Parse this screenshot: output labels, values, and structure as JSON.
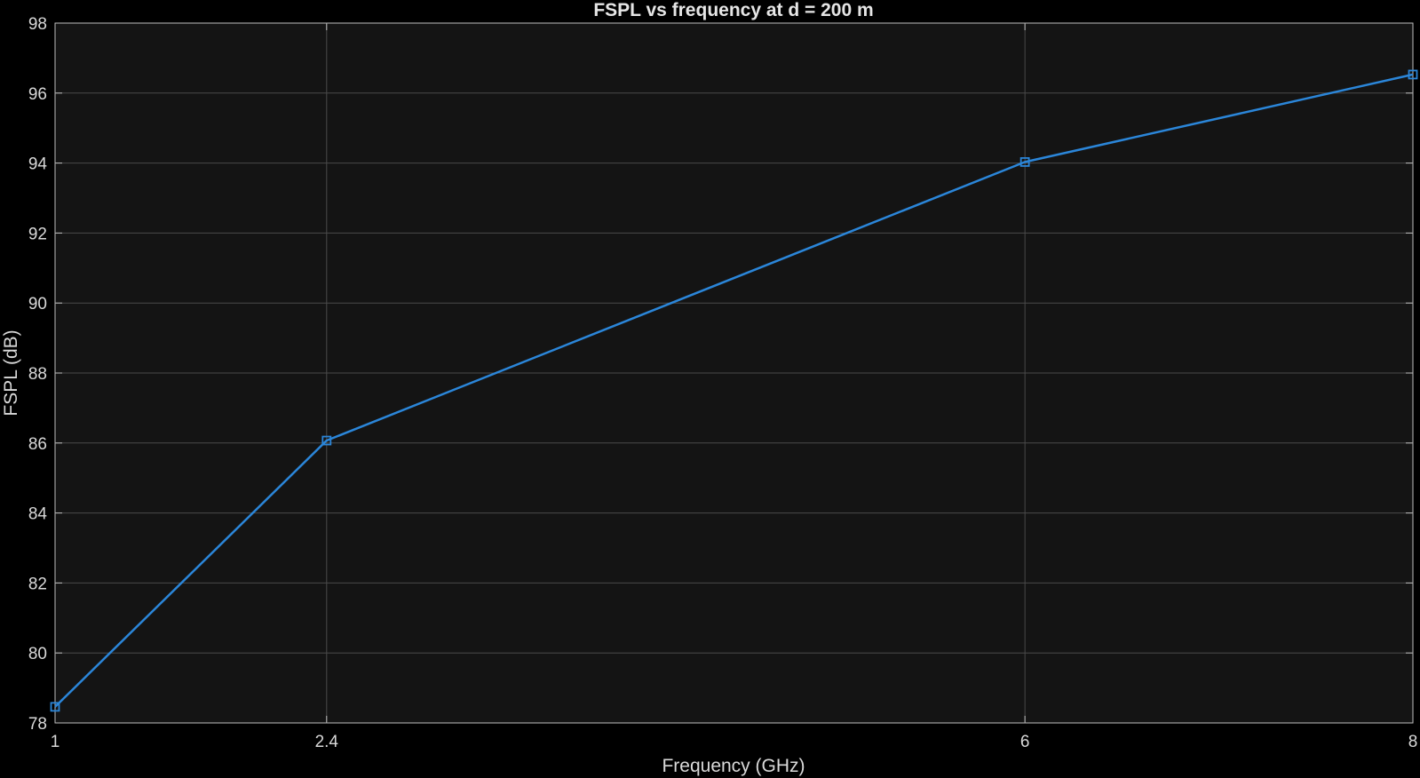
{
  "chart_data": {
    "type": "line",
    "title": "FSPL vs frequency at d = 200 m",
    "xlabel": "Frequency (GHz)",
    "ylabel": "FSPL (dB)",
    "x": [
      1,
      2.4,
      6,
      8
    ],
    "series": [
      {
        "values": [
          78.46,
          86.07,
          94.03,
          96.53
        ],
        "color": "#2b86d9",
        "marker": "square"
      }
    ],
    "xlim": [
      1,
      8
    ],
    "ylim": [
      78,
      98
    ],
    "xticks": [
      1,
      2.4,
      6,
      8
    ],
    "xtick_labels": [
      "1",
      "2.4",
      "6",
      "8"
    ],
    "yticks": [
      78,
      80,
      82,
      84,
      86,
      88,
      90,
      92,
      94,
      96,
      98
    ],
    "ytick_labels": [
      "78",
      "80",
      "82",
      "84",
      "86",
      "88",
      "90",
      "92",
      "94",
      "96",
      "98"
    ],
    "grid": true,
    "colors": {
      "background": "#000000",
      "plot_area": "#141414",
      "grid": "#4a4a4a",
      "text": "#d9d9d9"
    }
  }
}
